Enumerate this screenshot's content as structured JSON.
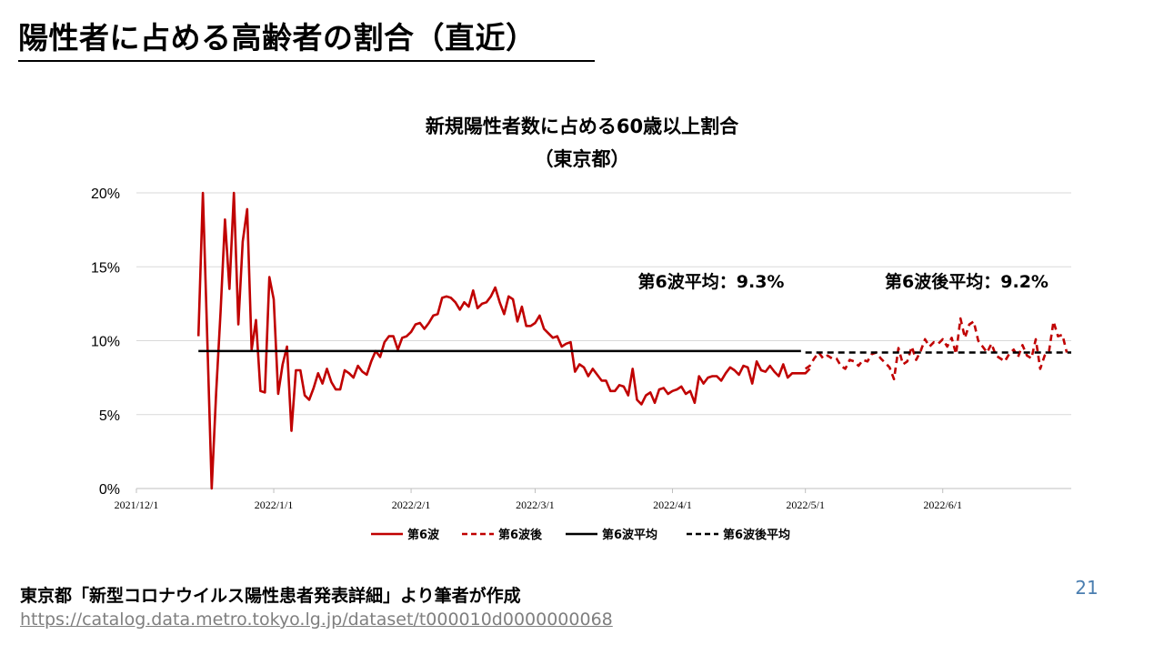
{
  "slide": {
    "title": "陽性者に占める高齢者の割合（直近）",
    "source": "東京都「新型コロナウイルス陽性患者発表詳細」より筆者が作成",
    "source_url": "https://catalog.data.metro.tokyo.lg.jp/dataset/t000010d0000000068",
    "page_number": "21"
  },
  "chart_data": {
    "type": "line",
    "title_line1": "新規陽性者数に占める60歳以上割合",
    "title_line2": "（東京都）",
    "y_ticks": [
      "0%",
      "5%",
      "10%",
      "15%",
      "20%"
    ],
    "ylim": [
      0,
      20
    ],
    "x_ticks": [
      "2021/12/1",
      "2022/1/1",
      "2022/2/1",
      "2022/3/1",
      "2022/4/1",
      "2022/5/1",
      "2022/6/1"
    ],
    "xlim": [
      "2021-12-01",
      "2022-06-30"
    ],
    "grid": true,
    "legend_position": "bottom",
    "colors": {
      "wave6": "#c00000",
      "avg": "#000000",
      "grid": "#d9d9d9",
      "axis": "#bfbfbf"
    },
    "annotations": [
      {
        "label": "第6波平均：9.3%"
      },
      {
        "label": "第6波後平均：9.2%"
      }
    ],
    "series": [
      {
        "name": "第6波",
        "style": "solid",
        "color": "#c00000",
        "x_start": "2021-12-15",
        "values": [
          10.3,
          20.0,
          10.0,
          0.0,
          6.5,
          12.0,
          18.2,
          13.5,
          20.0,
          11.1,
          16.7,
          18.9,
          9.4,
          11.4,
          6.6,
          6.5,
          14.3,
          12.8,
          6.4,
          8.4,
          9.6,
          3.9,
          8.0,
          8.0,
          6.3,
          6.0,
          6.8,
          7.8,
          7.1,
          8.1,
          7.2,
          6.7,
          6.7,
          8.0,
          7.8,
          7.5,
          8.3,
          7.9,
          7.7,
          8.6,
          9.3,
          8.9,
          9.9,
          10.3,
          10.3,
          9.4,
          10.2,
          10.3,
          10.6,
          11.1,
          11.2,
          10.8,
          11.2,
          11.7,
          11.8,
          12.9,
          13.0,
          12.9,
          12.6,
          12.1,
          12.6,
          12.3,
          13.4,
          12.2,
          12.5,
          12.6,
          13.0,
          13.6,
          12.6,
          11.8,
          13.0,
          12.8,
          11.3,
          12.3,
          11.0,
          11.0,
          11.2,
          11.7,
          10.8,
          10.5,
          10.2,
          10.3,
          9.6,
          9.8,
          9.9,
          7.9,
          8.4,
          8.2,
          7.6,
          8.1,
          7.7,
          7.3,
          7.3,
          6.6,
          6.6,
          7.0,
          6.9,
          6.3,
          8.1,
          6.0,
          5.7,
          6.3,
          6.5,
          5.8,
          6.7,
          6.8,
          6.4,
          6.6,
          6.7,
          6.9,
          6.4,
          6.6,
          5.8,
          7.6,
          7.1,
          7.5,
          7.6,
          7.6,
          7.3,
          7.8,
          8.2,
          8.0,
          7.7,
          8.3,
          8.2,
          7.1,
          8.6,
          8.0,
          7.9,
          8.3,
          7.9,
          7.6,
          8.4,
          7.5,
          7.8,
          7.8,
          7.8,
          7.8,
          8.1
        ]
      },
      {
        "name": "第6波後",
        "style": "dashed",
        "color": "#c00000",
        "x_start": "2022-05-01",
        "values": [
          8.1,
          8.3,
          8.8,
          9.2,
          8.8,
          9.0,
          8.8,
          8.8,
          8.3,
          8.1,
          8.7,
          8.6,
          8.3,
          8.7,
          8.6,
          9.1,
          9.2,
          8.8,
          8.5,
          8.2,
          7.4,
          9.5,
          8.4,
          8.6,
          9.6,
          8.7,
          9.3,
          10.1,
          9.6,
          9.9,
          9.8,
          10.1,
          9.6,
          10.2,
          9.1,
          11.5,
          10.2,
          11.1,
          11.3,
          10.0,
          9.6,
          9.2,
          9.8,
          9.0,
          8.8,
          8.6,
          9.1,
          9.4,
          8.9,
          9.7,
          9.0,
          8.8,
          10.1,
          8.1,
          9.0,
          9.3,
          11.3,
          10.3,
          10.4,
          9.2
        ]
      },
      {
        "name": "第6波平均",
        "style": "solid",
        "color": "#000000",
        "x_range": [
          "2021-12-15",
          "2022-04-30"
        ],
        "value": 9.3
      },
      {
        "name": "第6波後平均",
        "style": "dashed",
        "color": "#000000",
        "x_range": [
          "2022-05-01",
          "2022-06-30"
        ],
        "value": 9.2
      }
    ]
  }
}
